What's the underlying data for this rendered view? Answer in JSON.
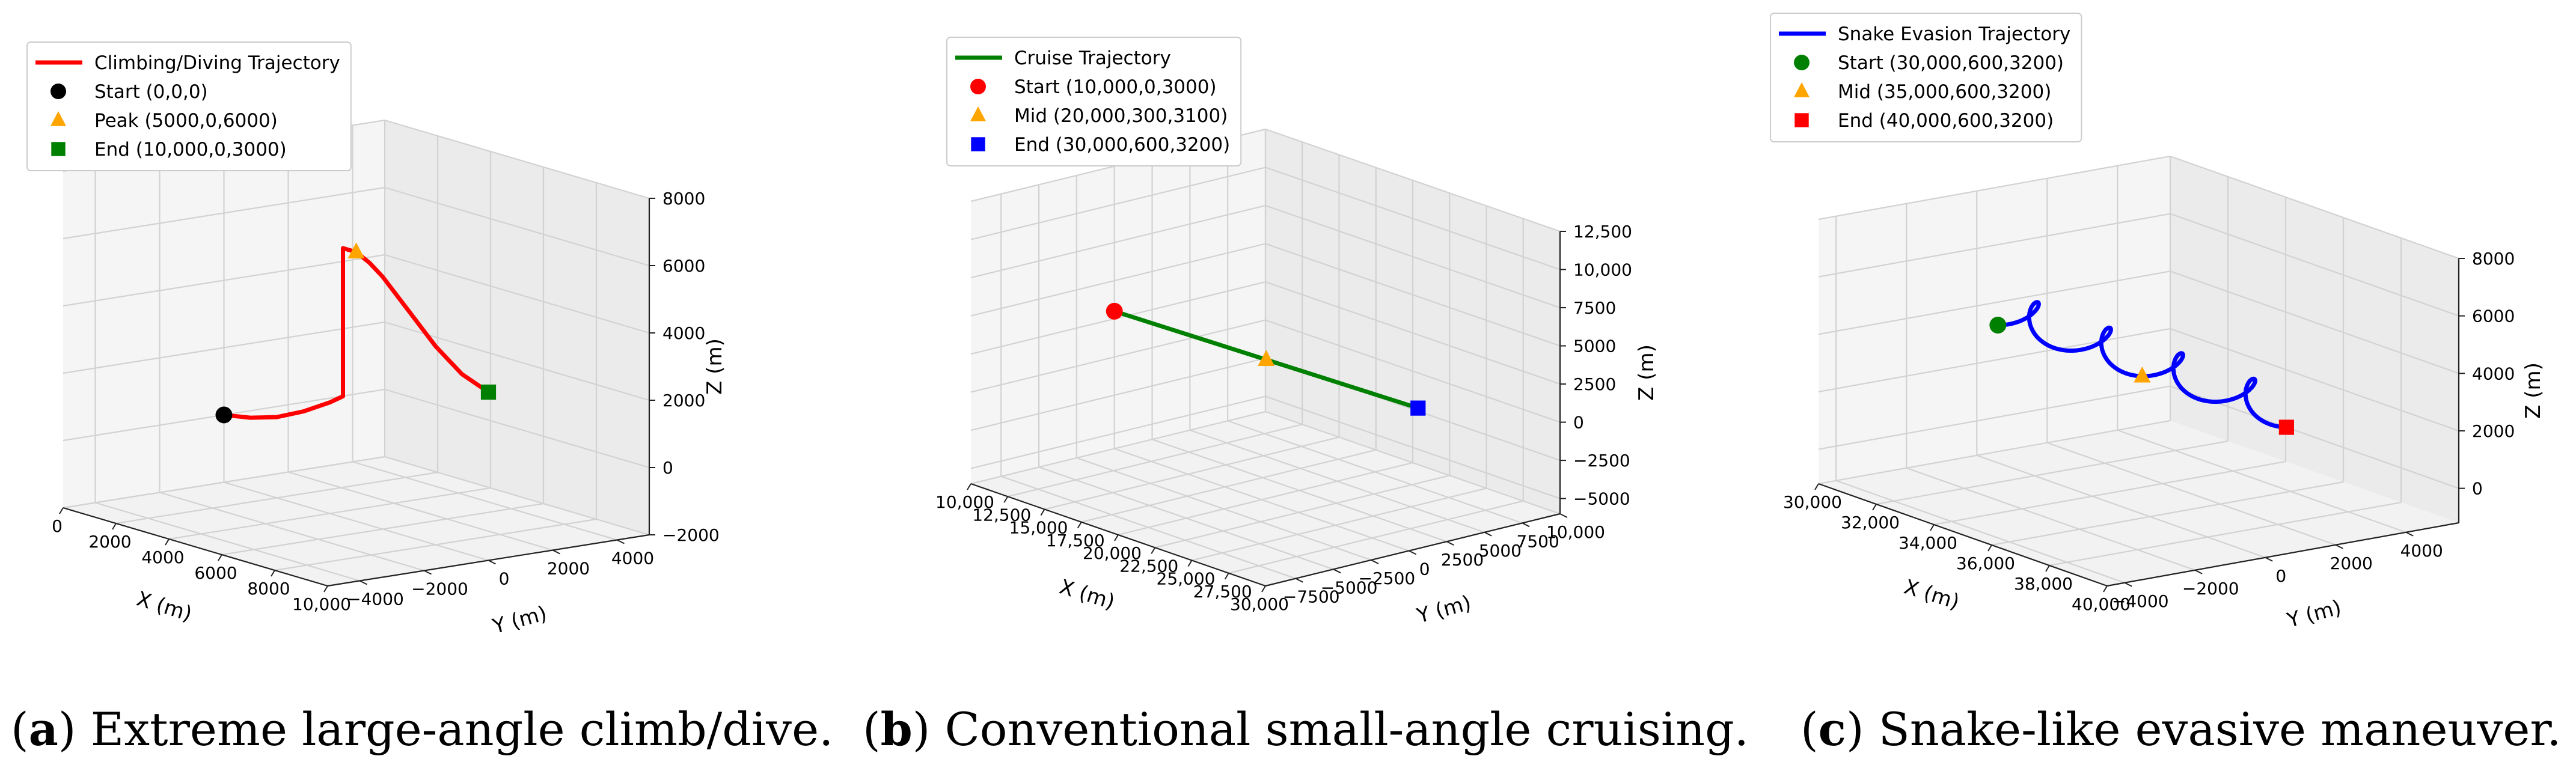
{
  "chart_data": [
    {
      "type": "line3d",
      "panel_label": "a",
      "caption": "Extreme large-angle climb/dive.",
      "series": [
        {
          "name": "Climbing/Diving Trajectory",
          "color": "#ff0000",
          "points": [
            [
              0,
              0,
              0
            ],
            [
              1000,
              0,
              150
            ],
            [
              2000,
              0,
              400
            ],
            [
              3000,
              0,
              800
            ],
            [
              4000,
              0,
              1300
            ],
            [
              4500,
              0,
              1600
            ],
            [
              4500,
              0,
              2500
            ],
            [
              4500,
              0,
              4500
            ],
            [
              4500,
              0,
              6000
            ],
            [
              5000,
              0,
              6000
            ],
            [
              5500,
              0,
              5800
            ],
            [
              6000,
              0,
              5500
            ],
            [
              7000,
              0,
              4700
            ],
            [
              8000,
              0,
              3900
            ],
            [
              9000,
              0,
              3300
            ],
            [
              10000,
              0,
              3000
            ]
          ]
        }
      ],
      "markers": [
        {
          "label": "Start (0,0,0)",
          "shape": "circle",
          "color": "#000000",
          "point": [
            0,
            0,
            0
          ]
        },
        {
          "label": "Peak (5000,0,6000)",
          "shape": "triangle",
          "color": "#ffa500",
          "point": [
            5000,
            0,
            6000
          ]
        },
        {
          "label": "End (10,000,0,3000)",
          "shape": "square",
          "color": "#008000",
          "point": [
            10000,
            0,
            3000
          ]
        }
      ],
      "xlabel": "X (m)",
      "ylabel": "Y (m)",
      "zlabel": "Z (m)",
      "xlim": [
        0,
        10000
      ],
      "ylim": [
        -5000,
        5000
      ],
      "zlim": [
        -2000,
        8000
      ],
      "xticks": [
        {
          "v": 0,
          "t": "0"
        },
        {
          "v": 2000,
          "t": "2000"
        },
        {
          "v": 4000,
          "t": "4000"
        },
        {
          "v": 6000,
          "t": "6000"
        },
        {
          "v": 8000,
          "t": "8000"
        },
        {
          "v": 10000,
          "t": "10,000"
        }
      ],
      "yticks": [
        {
          "v": -4000,
          "t": "−4000"
        },
        {
          "v": -2000,
          "t": "−2000"
        },
        {
          "v": 0,
          "t": "0"
        },
        {
          "v": 2000,
          "t": "2000"
        },
        {
          "v": 4000,
          "t": "4000"
        }
      ],
      "zticks": [
        {
          "v": -2000,
          "t": "−2000"
        },
        {
          "v": 0,
          "t": "0"
        },
        {
          "v": 2000,
          "t": "2000"
        },
        {
          "v": 4000,
          "t": "4000"
        },
        {
          "v": 6000,
          "t": "6000"
        },
        {
          "v": 8000,
          "t": "8000"
        }
      ]
    },
    {
      "type": "line3d",
      "panel_label": "b",
      "caption": "Conventional small-angle cruising.",
      "series": [
        {
          "name": "Cruise Trajectory",
          "color": "#008000",
          "points": [
            [
              10000,
              0,
              3000
            ],
            [
              20000,
              300,
              3100
            ],
            [
              30000,
              600,
              3200
            ]
          ]
        }
      ],
      "markers": [
        {
          "label": "Start (10,000,0,3000)",
          "shape": "circle",
          "color": "#ff0000",
          "point": [
            10000,
            0,
            3000
          ]
        },
        {
          "label": "Mid (20,000,300,3100)",
          "shape": "triangle",
          "color": "#ffa500",
          "point": [
            20000,
            300,
            3100
          ]
        },
        {
          "label": "End (30,000,600,3200)",
          "shape": "square",
          "color": "#0000ff",
          "point": [
            30000,
            600,
            3200
          ]
        }
      ],
      "xlabel": "X (m)",
      "ylabel": "Y (m)",
      "zlabel": "Z (m)",
      "xlim": [
        10000,
        30000
      ],
      "ylim": [
        -9500,
        10000
      ],
      "zlim": [
        -6000,
        12500
      ],
      "xticks": [
        {
          "v": 10000,
          "t": "10,000"
        },
        {
          "v": 12500,
          "t": "12,500"
        },
        {
          "v": 15000,
          "t": "15,000"
        },
        {
          "v": 17500,
          "t": "17,500"
        },
        {
          "v": 20000,
          "t": "20,000"
        },
        {
          "v": 22500,
          "t": "22,500"
        },
        {
          "v": 25000,
          "t": "25,000"
        },
        {
          "v": 27500,
          "t": "27,500"
        },
        {
          "v": 30000,
          "t": "30,000"
        }
      ],
      "yticks": [
        {
          "v": -7500,
          "t": "−7500"
        },
        {
          "v": -5000,
          "t": "−5000"
        },
        {
          "v": -2500,
          "t": "−2500"
        },
        {
          "v": 0,
          "t": "0"
        },
        {
          "v": 2500,
          "t": "2500"
        },
        {
          "v": 5000,
          "t": "5000"
        },
        {
          "v": 7500,
          "t": "7500"
        },
        {
          "v": 10000,
          "t": "10,000"
        }
      ],
      "zticks": [
        {
          "v": -5000,
          "t": "−5000"
        },
        {
          "v": -2500,
          "t": "−2500"
        },
        {
          "v": 0,
          "t": "0"
        },
        {
          "v": 2500,
          "t": "2500"
        },
        {
          "v": 5000,
          "t": "5000"
        },
        {
          "v": 7500,
          "t": "7500"
        },
        {
          "v": 10000,
          "t": "10,000"
        },
        {
          "v": 12500,
          "t": "12,500"
        }
      ]
    },
    {
      "type": "line3d",
      "panel_label": "c",
      "caption": "Snake-like evasive maneuver.",
      "series": [
        {
          "name": "Snake Evasion Trajectory",
          "color": "#0000ff",
          "helix": {
            "x_start": 30000,
            "x_end": 40000,
            "y_center": 600,
            "z_center": 3200,
            "radius": 550,
            "turns": 4
          }
        }
      ],
      "markers": [
        {
          "label": "Start (30,000,600,3200)",
          "shape": "circle",
          "color": "#008000",
          "point": [
            30000,
            600,
            3200
          ]
        },
        {
          "label": "Mid (35,000,600,3200)",
          "shape": "triangle",
          "color": "#ffa500",
          "point": [
            35000,
            600,
            3200
          ]
        },
        {
          "label": "End (40,000,600,3200)",
          "shape": "square",
          "color": "#ff0000",
          "point": [
            40000,
            600,
            3200
          ]
        }
      ],
      "xlabel": "X (m)",
      "ylabel": "Y (m)",
      "zlabel": "Z (m)",
      "xlim": [
        30000,
        40000
      ],
      "ylim": [
        -4500,
        5500
      ],
      "zlim": [
        -1200,
        8000
      ],
      "xticks": [
        {
          "v": 30000,
          "t": "30,000"
        },
        {
          "v": 32000,
          "t": "32,000"
        },
        {
          "v": 34000,
          "t": "34,000"
        },
        {
          "v": 36000,
          "t": "36,000"
        },
        {
          "v": 38000,
          "t": "38,000"
        },
        {
          "v": 40000,
          "t": "40,000"
        }
      ],
      "yticks": [
        {
          "v": -4000,
          "t": "−4000"
        },
        {
          "v": -2000,
          "t": "−2000"
        },
        {
          "v": 0,
          "t": "0"
        },
        {
          "v": 2000,
          "t": "2000"
        },
        {
          "v": 4000,
          "t": "4000"
        }
      ],
      "zticks": [
        {
          "v": 0,
          "t": "0"
        },
        {
          "v": 2000,
          "t": "2000"
        },
        {
          "v": 4000,
          "t": "4000"
        },
        {
          "v": 6000,
          "t": "6000"
        },
        {
          "v": 8000,
          "t": "8000"
        }
      ]
    }
  ]
}
